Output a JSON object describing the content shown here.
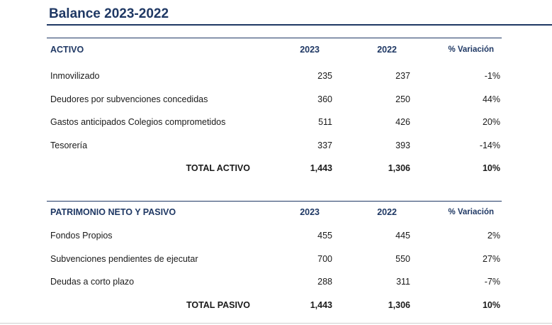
{
  "title": "Balance 2023-2022",
  "activo": {
    "header": {
      "label": "ACTIVO",
      "y1": "2023",
      "y2": "2022",
      "var": "% Variación"
    },
    "rows": [
      {
        "label": "Inmovilizado",
        "y1": "235",
        "y2": "237",
        "var": "-1%"
      },
      {
        "label": "Deudores por subvenciones concedidas",
        "y1": "360",
        "y2": "250",
        "var": "44%"
      },
      {
        "label": "Gastos anticipados Colegios comprometidos",
        "y1": "511",
        "y2": "426",
        "var": "20%"
      },
      {
        "label": "Tesorería",
        "y1": "337",
        "y2": "393",
        "var": "-14%"
      }
    ],
    "total": {
      "label": "TOTAL ACTIVO",
      "y1": "1,443",
      "y2": "1,306",
      "var": "10%"
    }
  },
  "pasivo": {
    "header": {
      "label": "PATRIMONIO NETO Y PASIVO",
      "y1": "2023",
      "y2": "2022",
      "var": "% Variación"
    },
    "rows": [
      {
        "label": "Fondos Propios",
        "y1": "455",
        "y2": "445",
        "var": "2%"
      },
      {
        "label": "Subvenciones pendientes de ejecutar",
        "y1": "700",
        "y2": "550",
        "var": "27%"
      },
      {
        "label": "Deudas a corto plazo",
        "y1": "288",
        "y2": "311",
        "var": "-7%"
      }
    ],
    "total": {
      "label": "TOTAL PASIVO",
      "y1": "1,443",
      "y2": "1,306",
      "var": "10%"
    }
  }
}
